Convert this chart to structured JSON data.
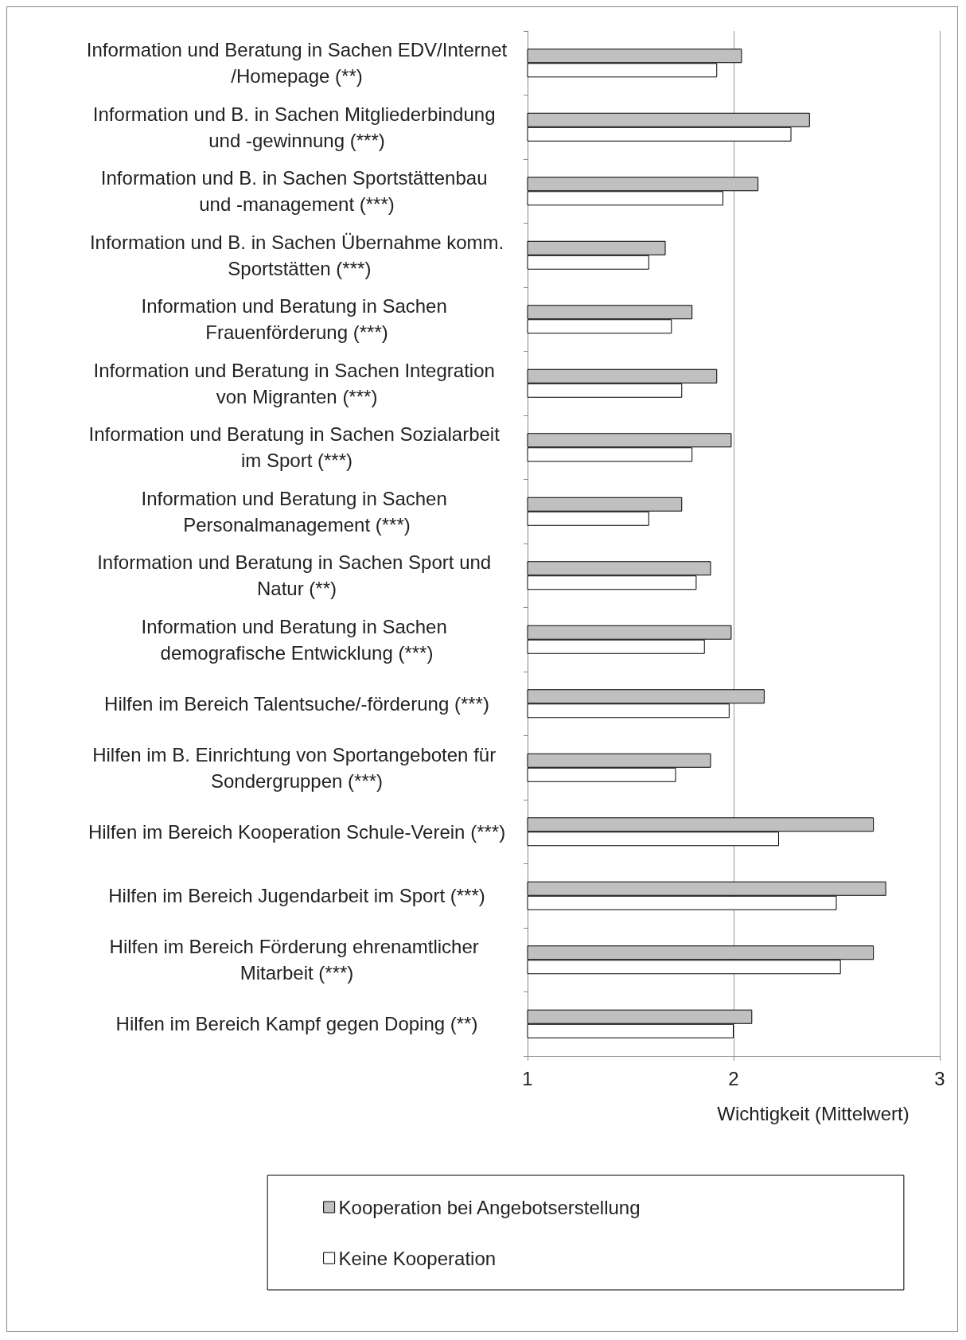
{
  "chart_data": {
    "type": "bar",
    "orientation": "horizontal",
    "xlabel": "Wichtigkeit (Mittelwert)",
    "categories": [
      "Information und Beratung in Sachen EDV/Internet/Homepage (**)",
      "Information und B. in Sachen Mitgliederbindung und -gewinnung (***)",
      "Information und B. in Sachen Sportstättenbau und -management (***)",
      "Information und B. in Sachen Übernahme komm. Sportstätten (***)",
      "Information und Beratung in Sachen Frauenförderung (***)",
      "Information und Beratung in Sachen Integration von Migranten (***)",
      "Information und Beratung in Sachen Sozialarbeit im Sport (***)",
      "Information und Beratung in Sachen Personalmanagement (***)",
      "Information und Beratung in Sachen Sport und Natur (**)",
      "Information und Beratung in Sachen demografische Entwicklung (***)",
      "Hilfen im Bereich Talentsuche/-förderung (***)",
      "Hilfen im B. Einrichtung von Sportangeboten für Sondergruppen (***)",
      "Hilfen im Bereich Kooperation Schule-Verein (***)",
      "Hilfen im Bereich Jugendarbeit im Sport (***)",
      "Hilfen im Bereich Förderung ehrenamtlicher Mitarbeit (***)",
      "Hilfen im Bereich Kampf gegen Doping (**)"
    ],
    "series": [
      {
        "name": "Kooperation bei Angebotserstellung",
        "color": "#c0c0c0",
        "values": [
          2.04,
          2.37,
          2.12,
          1.67,
          1.8,
          1.92,
          1.99,
          1.75,
          1.89,
          1.99,
          2.15,
          1.89,
          2.68,
          2.74,
          2.68,
          2.09
        ]
      },
      {
        "name": "Keine Kooperation",
        "color": "#ffffff",
        "values": [
          1.92,
          2.28,
          1.95,
          1.59,
          1.7,
          1.75,
          1.8,
          1.59,
          1.82,
          1.86,
          1.98,
          1.72,
          2.22,
          2.5,
          2.52,
          2.0
        ]
      }
    ],
    "xlim": [
      1,
      3
    ],
    "xticks": [
      1,
      2,
      3
    ],
    "grid": "x",
    "legend": "bottom"
  }
}
